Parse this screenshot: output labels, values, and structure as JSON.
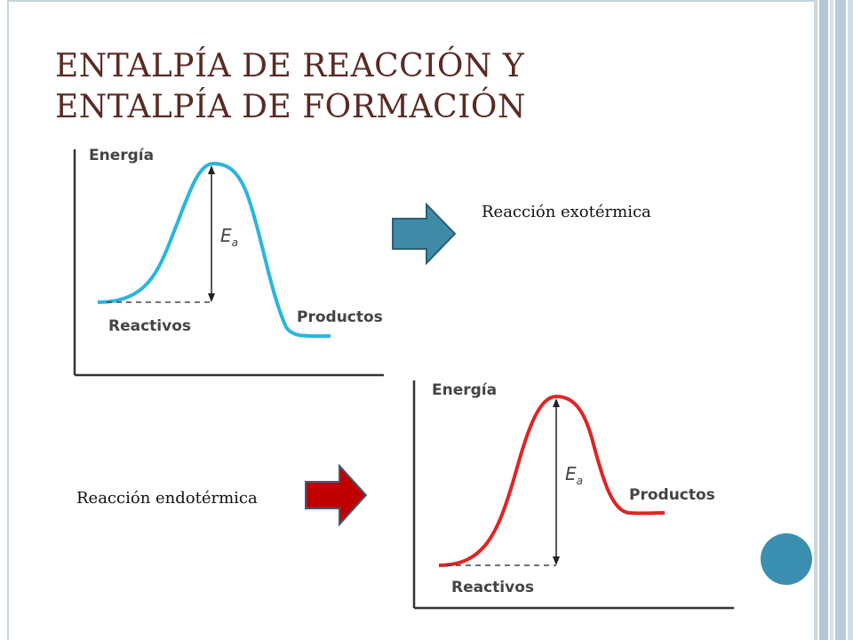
{
  "slide": {
    "title_line1": "ENTALPÍA DE REACCIÓN Y",
    "title_line2": "ENTALPÍA DE FORMACIÓN"
  },
  "exothermic": {
    "caption": "Reacción exotérmica",
    "y_axis_label": "Energía",
    "ea_label_main": "E",
    "ea_label_sub": "a",
    "reactants_label": "Reactivos",
    "products_label": "Productos",
    "curve_color": "#29b5e0",
    "arrow_color": "#3f8aa6"
  },
  "endothermic": {
    "caption": "Reacción endotérmica",
    "y_axis_label": "Energía",
    "ea_label_main": "E",
    "ea_label_sub": "a",
    "reactants_label": "Reactivos",
    "products_label": "Productos",
    "curve_color": "#e02424",
    "arrow_color": "#c00000"
  },
  "theme": {
    "title_color": "#5a2a22",
    "frame_color": "#c3d3de",
    "accent_circle": "#3a8fb0"
  }
}
